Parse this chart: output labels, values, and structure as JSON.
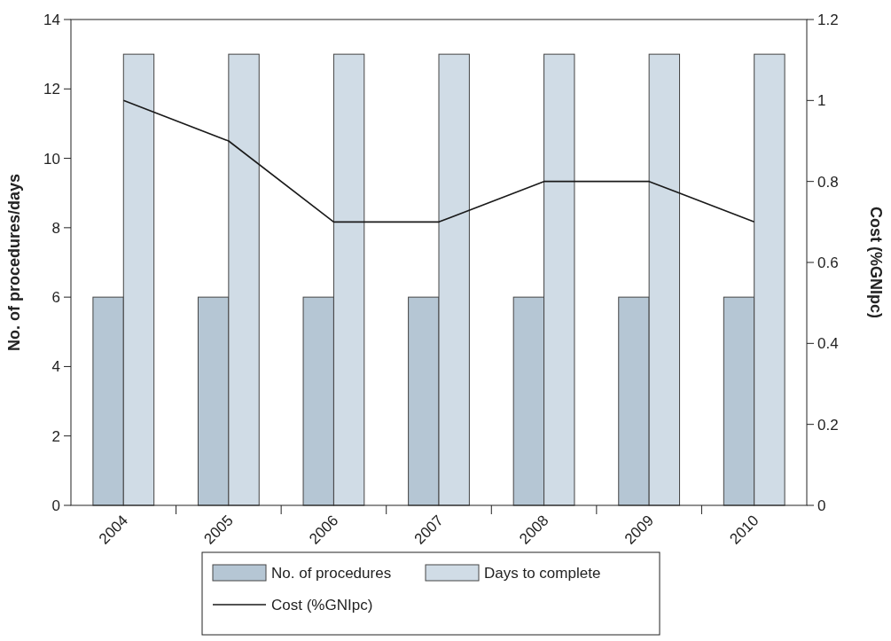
{
  "chart_data": {
    "type": "bar",
    "categories": [
      "2004",
      "2005",
      "2006",
      "2007",
      "2008",
      "2009",
      "2010"
    ],
    "series": [
      {
        "name": "No. of procedures",
        "color": "#b5c6d4",
        "values": [
          6,
          6,
          6,
          6,
          6,
          6,
          6
        ]
      },
      {
        "name": "Days to complete",
        "color": "#d0dce6",
        "values": [
          13,
          13,
          13,
          13,
          13,
          13,
          13
        ]
      },
      {
        "name": "Cost (%GNIpc)",
        "type": "line",
        "axis": "y2",
        "color": "#1a1a1a",
        "values": [
          1.0,
          0.9,
          0.7,
          0.7,
          0.8,
          0.8,
          0.7
        ]
      }
    ],
    "ylabel": "No. of procedures/days",
    "y2label": "Cost (%GNIpc)",
    "ylim": [
      0,
      14
    ],
    "yticks": [
      0,
      2,
      4,
      6,
      8,
      10,
      12,
      14
    ],
    "y2lim": [
      0,
      1.2
    ],
    "y2ticks": [
      0,
      0.2,
      0.4,
      0.6,
      0.8,
      1,
      1.2
    ],
    "legend": "bottom",
    "grid": false,
    "marker": "none",
    "line_style": "solid"
  }
}
